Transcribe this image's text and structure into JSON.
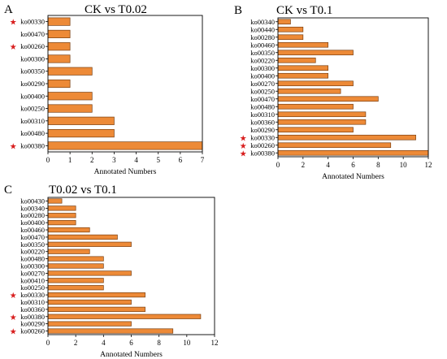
{
  "colors": {
    "bar": "#ED8A37",
    "bar_stroke": "#7A3F10",
    "star": "#D81E1E",
    "axis": "#000000"
  },
  "chart_data": [
    {
      "type": "bar",
      "orientation": "horizontal",
      "panel_letter": "A",
      "title": "CK vs T0.02",
      "xlabel": "Annotated Numbers",
      "ylabel": "",
      "xlim": [
        0,
        7
      ],
      "xticks": [
        0,
        1,
        2,
        3,
        4,
        5,
        6,
        7
      ],
      "categories": [
        "ko00330",
        "ko00470",
        "ko00260",
        "ko00300",
        "ko00350",
        "ko00290",
        "ko00400",
        "ko00250",
        "ko00310",
        "ko00480",
        "ko00380"
      ],
      "values": [
        1,
        1,
        1,
        1,
        2,
        1,
        2,
        2,
        3,
        3,
        7
      ],
      "starred": [
        "ko00330",
        "ko00260",
        "ko00380"
      ]
    },
    {
      "type": "bar",
      "orientation": "horizontal",
      "panel_letter": "B",
      "title": "CK vs T0.1",
      "xlabel": "Annotated Numbers",
      "ylabel": "",
      "xlim": [
        0,
        12
      ],
      "xticks": [
        0,
        2,
        4,
        6,
        8,
        10,
        12
      ],
      "categories": [
        "ko00340",
        "ko00440",
        "ko00280",
        "ko00460",
        "ko00350",
        "ko00220",
        "ko00300",
        "ko00400",
        "ko00270",
        "ko00250",
        "ko00470",
        "ko00480",
        "ko00310",
        "ko00360",
        "ko00290",
        "ko00330",
        "ko00260",
        "ko00380"
      ],
      "values": [
        1,
        2,
        2,
        4,
        6,
        3,
        4,
        4,
        6,
        5,
        8,
        6,
        7,
        7,
        6,
        11,
        9,
        12
      ],
      "starred": [
        "ko00330",
        "ko00260",
        "ko00380"
      ]
    },
    {
      "type": "bar",
      "orientation": "horizontal",
      "panel_letter": "C",
      "title": "T0.02 vs T0.1",
      "xlabel": "Annotated Numbers",
      "ylabel": "",
      "xlim": [
        0,
        12
      ],
      "xticks": [
        0,
        2,
        4,
        6,
        8,
        10,
        12
      ],
      "categories": [
        "ko00430",
        "ko00340",
        "ko00280",
        "ko00400",
        "ko00460",
        "ko00470",
        "ko00350",
        "ko00220",
        "ko00480",
        "ko00300",
        "ko00270",
        "ko00410",
        "ko00250",
        "ko00330",
        "ko00310",
        "ko00360",
        "ko00380",
        "ko00290",
        "ko00260"
      ],
      "values": [
        1,
        2,
        2,
        2,
        3,
        5,
        6,
        3,
        4,
        4,
        6,
        4,
        4,
        7,
        6,
        7,
        11,
        6,
        9
      ],
      "starred": [
        "ko00330",
        "ko00380",
        "ko00260"
      ]
    }
  ]
}
